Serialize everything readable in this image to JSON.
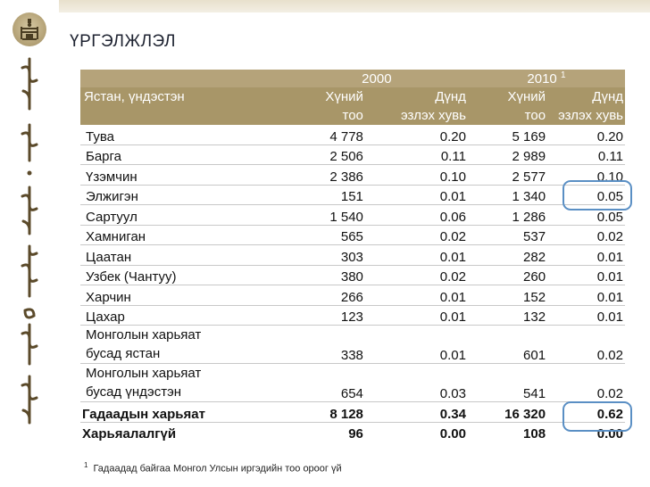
{
  "title": "ҮРГЭЛЖЛЭЛ",
  "emblem_icon": "soyombo-emblem-icon",
  "sidebar_decoration": "mongolian-script-vertical",
  "colors": {
    "header_band": "#b5a37a",
    "header_band_dark": "#a89668",
    "highlight": "#5a8fc4"
  },
  "table": {
    "row_header": "Ястан, үндэстэн",
    "year_2000": "2000",
    "year_2010": "2010",
    "year_2010_note": "1",
    "col_count_a": "Хүний",
    "col_count_b": "тоо",
    "col_pct_a": "Дүнд",
    "col_pct_b": "эзлэх хувь",
    "rows": [
      {
        "name": "Тува",
        "c2000": "4 778",
        "p2000": "0.20",
        "c2010": "5 169",
        "p2010": "0.20"
      },
      {
        "name": "Барга",
        "c2000": "2 506",
        "p2000": "0.11",
        "c2010": "2 989",
        "p2010": "0.11"
      },
      {
        "name": "Үзэмчин",
        "c2000": "2 386",
        "p2000": "0.10",
        "c2010": "2 577",
        "p2010": "0.10"
      },
      {
        "name": "Элжигэн",
        "c2000": "151",
        "p2000": "0.01",
        "c2010": "1 340",
        "p2010": "0.05"
      },
      {
        "name": "Сартуул",
        "c2000": "1 540",
        "p2000": "0.06",
        "c2010": "1 286",
        "p2010": "0.05"
      },
      {
        "name": "Хамниган",
        "c2000": "565",
        "p2000": "0.02",
        "c2010": "537",
        "p2010": "0.02"
      },
      {
        "name": "Цаатан",
        "c2000": "303",
        "p2000": "0.01",
        "c2010": "282",
        "p2010": "0.01"
      },
      {
        "name": "Узбек (Чантуу)",
        "c2000": "380",
        "p2000": "0.02",
        "c2010": "260",
        "p2010": "0.01"
      },
      {
        "name": "Харчин",
        "c2000": "266",
        "p2000": "0.01",
        "c2010": "152",
        "p2010": "0.01"
      },
      {
        "name": "Цахар",
        "c2000": "123",
        "p2000": "0.01",
        "c2010": "132",
        "p2010": "0.01"
      },
      {
        "name1": "Монголын харьяат",
        "name2": "бусад ястан",
        "c2000": "338",
        "p2000": "0.01",
        "c2010": "601",
        "p2010": "0.02"
      },
      {
        "name1": "Монголын харьяат",
        "name2": "бусад үндэстэн",
        "c2000": "654",
        "p2000": "0.03",
        "c2010": "541",
        "p2010": "0.02"
      },
      {
        "name": "Гадаадын харьяат",
        "c2000": "8 128",
        "p2000": "0.34",
        "c2010": "16 320",
        "p2010": "0.62"
      },
      {
        "name": "Харьяалалгүй",
        "c2000": "96",
        "p2000": "0.00",
        "c2010": "108",
        "p2010": "0.00"
      }
    ]
  },
  "footnote_mark": "1",
  "footnote": "Гадаадад байгаа Монгол Улсын иргэдийн тоо ороог үй"
}
